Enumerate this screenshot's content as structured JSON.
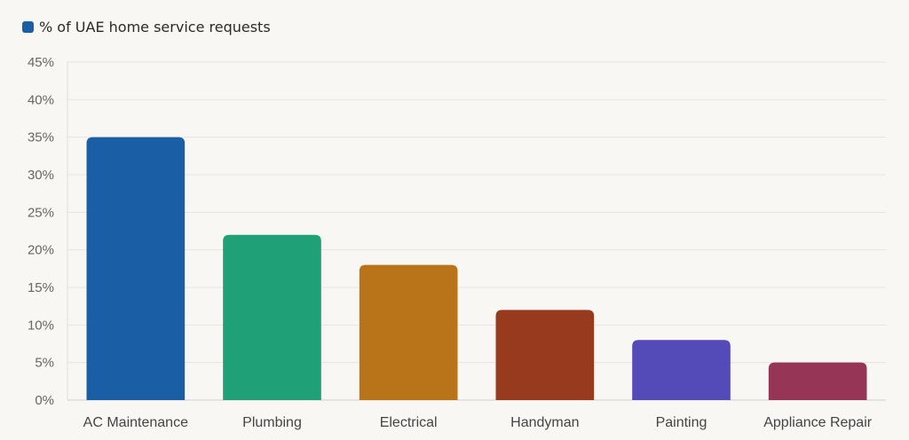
{
  "chart_data": {
    "type": "bar",
    "categories": [
      "AC Maintenance",
      "Plumbing",
      "Electrical",
      "Handyman",
      "Painting",
      "Appliance Repair"
    ],
    "series": [
      {
        "name": "% of UAE home service requests",
        "values": [
          35,
          22,
          18,
          12,
          8,
          5
        ],
        "colors": [
          "#1a5ea6",
          "#20a076",
          "#b97318",
          "#983a1e",
          "#544bb8",
          "#973556"
        ]
      }
    ],
    "ylim": [
      0,
      45
    ],
    "yticks": [
      0,
      5,
      10,
      15,
      20,
      25,
      30,
      35,
      40,
      45
    ],
    "y_tick_suffix": "%",
    "grid": true,
    "legend_position": "top-left",
    "legend_color": "#1a5ea6"
  }
}
